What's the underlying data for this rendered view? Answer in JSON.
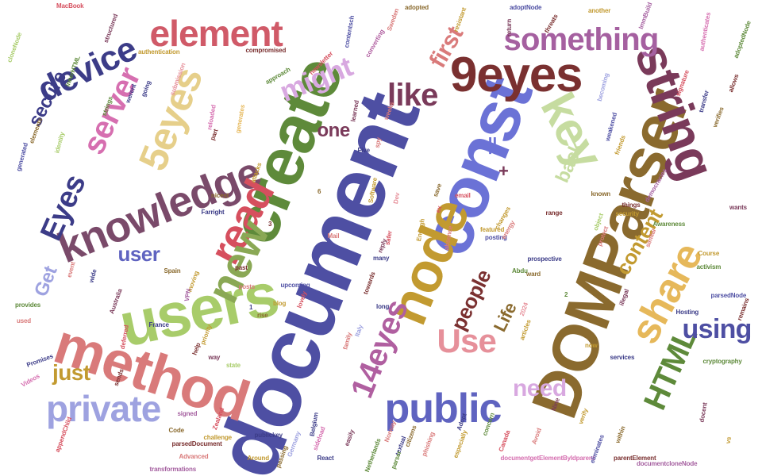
{
  "words": [
    {
      "text": "document",
      "color": "#4e4fa3"
    },
    {
      "text": "DOMParser",
      "color": "#8a6a2e"
    },
    {
      "text": "const",
      "color": "#6b72d6"
    },
    {
      "text": "create",
      "color": "#5e8a3a"
    },
    {
      "text": "users",
      "color": "#a8cc6a"
    },
    {
      "text": "method",
      "color": "#d97a7a"
    },
    {
      "text": "string",
      "color": "#7a3a5a"
    },
    {
      "text": "node",
      "color": "#c29a30"
    },
    {
      "text": "9eyes",
      "color": "#7a3030"
    },
    {
      "text": "key",
      "color": "#c6dca0"
    },
    {
      "text": "knowledge",
      "color": "#7a4a6a"
    },
    {
      "text": "share",
      "color": "#e6b85a"
    },
    {
      "text": "read",
      "color": "#d64f5e"
    },
    {
      "text": "new",
      "color": "#8aa855"
    },
    {
      "text": "private",
      "color": "#9ea2e0"
    },
    {
      "text": "public",
      "color": "#5f63c0"
    },
    {
      "text": "14eyes",
      "color": "#b05fa0"
    },
    {
      "text": "5eyes",
      "color": "#e6cf8a"
    },
    {
      "text": "element",
      "color": "#d05a68"
    },
    {
      "text": "something",
      "color": "#a560a0"
    },
    {
      "text": "device",
      "color": "#3c3c88"
    },
    {
      "text": "server",
      "color": "#d66fb0"
    },
    {
      "text": "might",
      "color": "#d8a8e0"
    },
    {
      "text": "like",
      "color": "#7a3a5a"
    },
    {
      "text": "HTML",
      "color": "#5e8a3a"
    },
    {
      "text": "Use",
      "color": "#e6909a"
    },
    {
      "text": "using",
      "color": "#4e4fa3"
    },
    {
      "text": "Eyes",
      "color": "#3c3c88"
    },
    {
      "text": "first",
      "color": "#d97a7a"
    },
    {
      "text": "content",
      "color": "#c29a30"
    },
    {
      "text": "people",
      "color": "#7a3030"
    },
    {
      "text": "need",
      "color": "#d8a8e0"
    },
    {
      "text": "just",
      "color": "#c29a30"
    },
    {
      "text": "secure",
      "color": "#3c3c88"
    },
    {
      "text": "back",
      "color": "#c6dca0"
    },
    {
      "text": "user",
      "color": "#5f63c0"
    },
    {
      "text": "Get",
      "color": "#9ea2e0"
    },
    {
      "text": "one",
      "color": "#7a3a5a"
    },
    {
      "text": "Life",
      "color": "#8a6a2e"
    },
    {
      "text": "||",
      "color": "#6b72d6"
    },
    {
      "text": "+",
      "color": "#7a3a5a"
    },
    {
      "text": "MacBook",
      "color": "#d64f5e"
    },
    {
      "text": "structured",
      "color": "#7a3a5a"
    },
    {
      "text": "innerHTML",
      "color": "#5e8a3a"
    },
    {
      "text": "cloneNode",
      "color": "#a8cc6a"
    },
    {
      "text": "authentication",
      "color": "#c29a30"
    },
    {
      "text": "compromised",
      "color": "#7a3030"
    },
    {
      "text": "approach",
      "color": "#5e8a3a"
    },
    {
      "text": "newsletter",
      "color": "#d64f5e"
    },
    {
      "text": "contentsch",
      "color": "#4e4fa3"
    },
    {
      "text": "converting",
      "color": "#b05fa0"
    },
    {
      "text": "Sweden",
      "color": "#d97a7a"
    },
    {
      "text": "adopted",
      "color": "#8a6a2e"
    },
    {
      "text": "resistant",
      "color": "#c29a30"
    },
    {
      "text": "adoptNode",
      "color": "#4e4fa3"
    },
    {
      "text": "threats",
      "color": "#7a3030"
    },
    {
      "text": "return",
      "color": "#7a3a5a"
    },
    {
      "text": "another",
      "color": "#c29a30"
    },
    {
      "text": "ImmBuild",
      "color": "#a560a0"
    },
    {
      "text": "authenticates",
      "color": "#d66fb0"
    },
    {
      "text": "adoptedNode",
      "color": "#5e8a3a"
    },
    {
      "text": "signature",
      "color": "#d64f5e"
    },
    {
      "text": "transfer",
      "color": "#3c3c88"
    },
    {
      "text": "verifies",
      "color": "#8a6a2e"
    },
    {
      "text": "allows",
      "color": "#7a3030"
    },
    {
      "text": "becoming",
      "color": "#9ea2e0"
    },
    {
      "text": "weakened",
      "color": "#4e4fa3"
    },
    {
      "text": "friends",
      "color": "#c29a30"
    },
    {
      "text": "featured",
      "color": "#c29a30"
    },
    {
      "text": "posting",
      "color": "#4e4fa3"
    },
    {
      "text": "changes",
      "color": "#c29a30"
    },
    {
      "text": "energy",
      "color": "#d97a7a"
    },
    {
      "text": "strings",
      "color": "#5e8a3a"
    },
    {
      "text": "werent",
      "color": "#3c3c88"
    },
    {
      "text": "going",
      "color": "#3c3c88"
    },
    {
      "text": "submission",
      "color": "#e6909a"
    },
    {
      "text": "reloaded",
      "color": "#d66fb0"
    },
    {
      "text": "generates",
      "color": "#e6b85a"
    },
    {
      "text": "learned",
      "color": "#7a3a5a"
    },
    {
      "text": "weeks",
      "color": "#d97a7a"
    },
    {
      "text": "Five",
      "color": "#3c3c88"
    },
    {
      "text": "Software",
      "color": "#c29a30"
    },
    {
      "text": "spy",
      "color": "#d97a7a"
    },
    {
      "text": "elements",
      "color": "#8a6a2e"
    },
    {
      "text": "identity",
      "color": "#a8cc6a"
    },
    {
      "text": "generated",
      "color": "#4e4fa3"
    },
    {
      "text": "part",
      "color": "#7a3030"
    },
    {
      "text": "nicest",
      "color": "#8a6a2e"
    },
    {
      "text": "Farright",
      "color": "#3c3c88"
    },
    {
      "text": "attacks",
      "color": "#c29a30"
    },
    {
      "text": "Mail",
      "color": "#d97a7a"
    },
    {
      "text": "Dev",
      "color": "#e6909a"
    },
    {
      "text": "email",
      "color": "#d64f5e"
    },
    {
      "text": "known",
      "color": "#8a6a2e"
    },
    {
      "text": "democracies",
      "color": "#a560a0"
    },
    {
      "text": "things",
      "color": "#7a3030"
    },
    {
      "text": "security",
      "color": "#c29a30"
    },
    {
      "text": "wants",
      "color": "#7a3a5a"
    },
    {
      "text": "Awareness",
      "color": "#5e8a3a"
    },
    {
      "text": "similar",
      "color": "#d97a7a"
    },
    {
      "text": "Course",
      "color": "#c29a30"
    },
    {
      "text": "activism",
      "color": "#5e8a3a"
    },
    {
      "text": "protect",
      "color": "#d97a7a"
    },
    {
      "text": "prospective",
      "color": "#3c3c88"
    },
    {
      "text": "range",
      "color": "#7a3030"
    },
    {
      "text": "object",
      "color": "#a8cc6a"
    },
    {
      "text": "safer",
      "color": "#d64f5e"
    },
    {
      "text": "reply",
      "color": "#7a3a5a"
    },
    {
      "text": "many",
      "color": "#3c3c88"
    },
    {
      "text": "Abdu",
      "color": "#5e8a3a"
    },
    {
      "text": "ward",
      "color": "#8a6a2e"
    },
    {
      "text": "upcoming",
      "color": "#4e4fa3"
    },
    {
      "text": "past",
      "color": "#7a3030"
    },
    {
      "text": "moving",
      "color": "#c29a30"
    },
    {
      "text": "VPN",
      "color": "#a560a0"
    },
    {
      "text": "Spain",
      "color": "#8a6a2e"
    },
    {
      "text": "Australia",
      "color": "#7a3a5a"
    },
    {
      "text": "wide",
      "color": "#3c3c88"
    },
    {
      "text": "event",
      "color": "#d97a7a"
    },
    {
      "text": "posts",
      "color": "#d97a7a"
    },
    {
      "text": "blog",
      "color": "#c29a30"
    },
    {
      "text": "rise",
      "color": "#8a6a2e"
    },
    {
      "text": "lovely",
      "color": "#d64f5e"
    },
    {
      "text": "long",
      "color": "#3c3c88"
    },
    {
      "text": "2024",
      "color": "#e6909a"
    },
    {
      "text": "articles",
      "color": "#c29a30"
    },
    {
      "text": "Hosting",
      "color": "#3c3c88"
    },
    {
      "text": "parsedNode",
      "color": "#4e4fa3"
    },
    {
      "text": "remains",
      "color": "#7a3030"
    },
    {
      "text": "illegal",
      "color": "#7a3a5a"
    },
    {
      "text": "provides",
      "color": "#5e8a3a"
    },
    {
      "text": "used",
      "color": "#d97a7a"
    },
    {
      "text": "France",
      "color": "#3c3c88"
    },
    {
      "text": "deferred",
      "color": "#d64f5e"
    },
    {
      "text": "priority",
      "color": "#c29a30"
    },
    {
      "text": "help",
      "color": "#7a3030"
    },
    {
      "text": "way",
      "color": "#7a3a5a"
    },
    {
      "text": "state",
      "color": "#a8cc6a"
    },
    {
      "text": "Italy",
      "color": "#9ea2e0"
    },
    {
      "text": "family",
      "color": "#d97a7a"
    },
    {
      "text": "services",
      "color": "#3c3c88"
    },
    {
      "text": "cryptography",
      "color": "#5e8a3a"
    },
    {
      "text": "now",
      "color": "#c29a30"
    },
    {
      "text": "Promises",
      "color": "#3c3c88"
    },
    {
      "text": "Videos",
      "color": "#d66fb0"
    },
    {
      "text": "sends",
      "color": "#7a3030"
    },
    {
      "text": "signed",
      "color": "#a560a0"
    },
    {
      "text": "Zealand",
      "color": "#d64f5e"
    },
    {
      "text": "Code",
      "color": "#8a6a2e"
    },
    {
      "text": "challenge",
      "color": "#c29a30"
    },
    {
      "text": "publickey",
      "color": "#3c3c88"
    },
    {
      "text": "parsedDocument",
      "color": "#7a3030"
    },
    {
      "text": "Germany",
      "color": "#9ea2e0"
    },
    {
      "text": "Netherlands",
      "color": "#5e8a3a"
    },
    {
      "text": "Norway",
      "color": "#d97a7a"
    },
    {
      "text": "React",
      "color": "#3c3c88"
    },
    {
      "text": "Advanced",
      "color": "#d97a7a"
    },
    {
      "text": "Around",
      "color": "#c29a30"
    },
    {
      "text": "passing",
      "color": "#8a6a2e"
    },
    {
      "text": "transformations",
      "color": "#a560a0"
    },
    {
      "text": "appendChild",
      "color": "#d64f5e"
    },
    {
      "text": "Belgium",
      "color": "#3c3c88"
    },
    {
      "text": "easily",
      "color": "#7a3a5a"
    },
    {
      "text": "phishing",
      "color": "#d97a7a"
    },
    {
      "text": "citizens",
      "color": "#8a6a2e"
    },
    {
      "text": "especially",
      "color": "#c29a30"
    },
    {
      "text": "documentgetElementByIdparent",
      "color": "#d66fb0"
    },
    {
      "text": "eliminates",
      "color": "#4e4fa3"
    },
    {
      "text": "parentElement",
      "color": "#7a3030"
    },
    {
      "text": "documentcloneNode",
      "color": "#a560a0"
    },
    {
      "text": "verify",
      "color": "#c29a30"
    },
    {
      "text": "within",
      "color": "#8a6a2e"
    },
    {
      "text": "Canada",
      "color": "#d64f5e"
    },
    {
      "text": "Nine",
      "color": "#7a3a5a"
    },
    {
      "text": "concern",
      "color": "#5e8a3a"
    },
    {
      "text": "Adopt",
      "color": "#3c3c88"
    },
    {
      "text": "Avoid",
      "color": "#d97a7a"
    },
    {
      "text": "docent",
      "color": "#7a3a5a"
    },
    {
      "text": "vs",
      "color": "#c29a30"
    },
    {
      "text": "towards",
      "color": "#7a3030"
    },
    {
      "text": "Enough",
      "color": "#c29a30"
    },
    {
      "text": "save",
      "color": "#8a6a2e"
    },
    {
      "text": "ex",
      "color": "#d64f5e"
    },
    {
      "text": "absence",
      "color": "#d97a7a"
    },
    {
      "text": "textual",
      "color": "#3c3c88"
    },
    {
      "text": "sideload",
      "color": "#d66fb0"
    },
    {
      "text": "parser",
      "color": "#5e8a3a"
    },
    {
      "text": "3",
      "color": "#7a3030"
    },
    {
      "text": "6",
      "color": "#8a6a2e"
    },
    {
      "text": "1",
      "color": "#3c3c88"
    },
    {
      "text": "2",
      "color": "#5e8a3a"
    }
  ]
}
